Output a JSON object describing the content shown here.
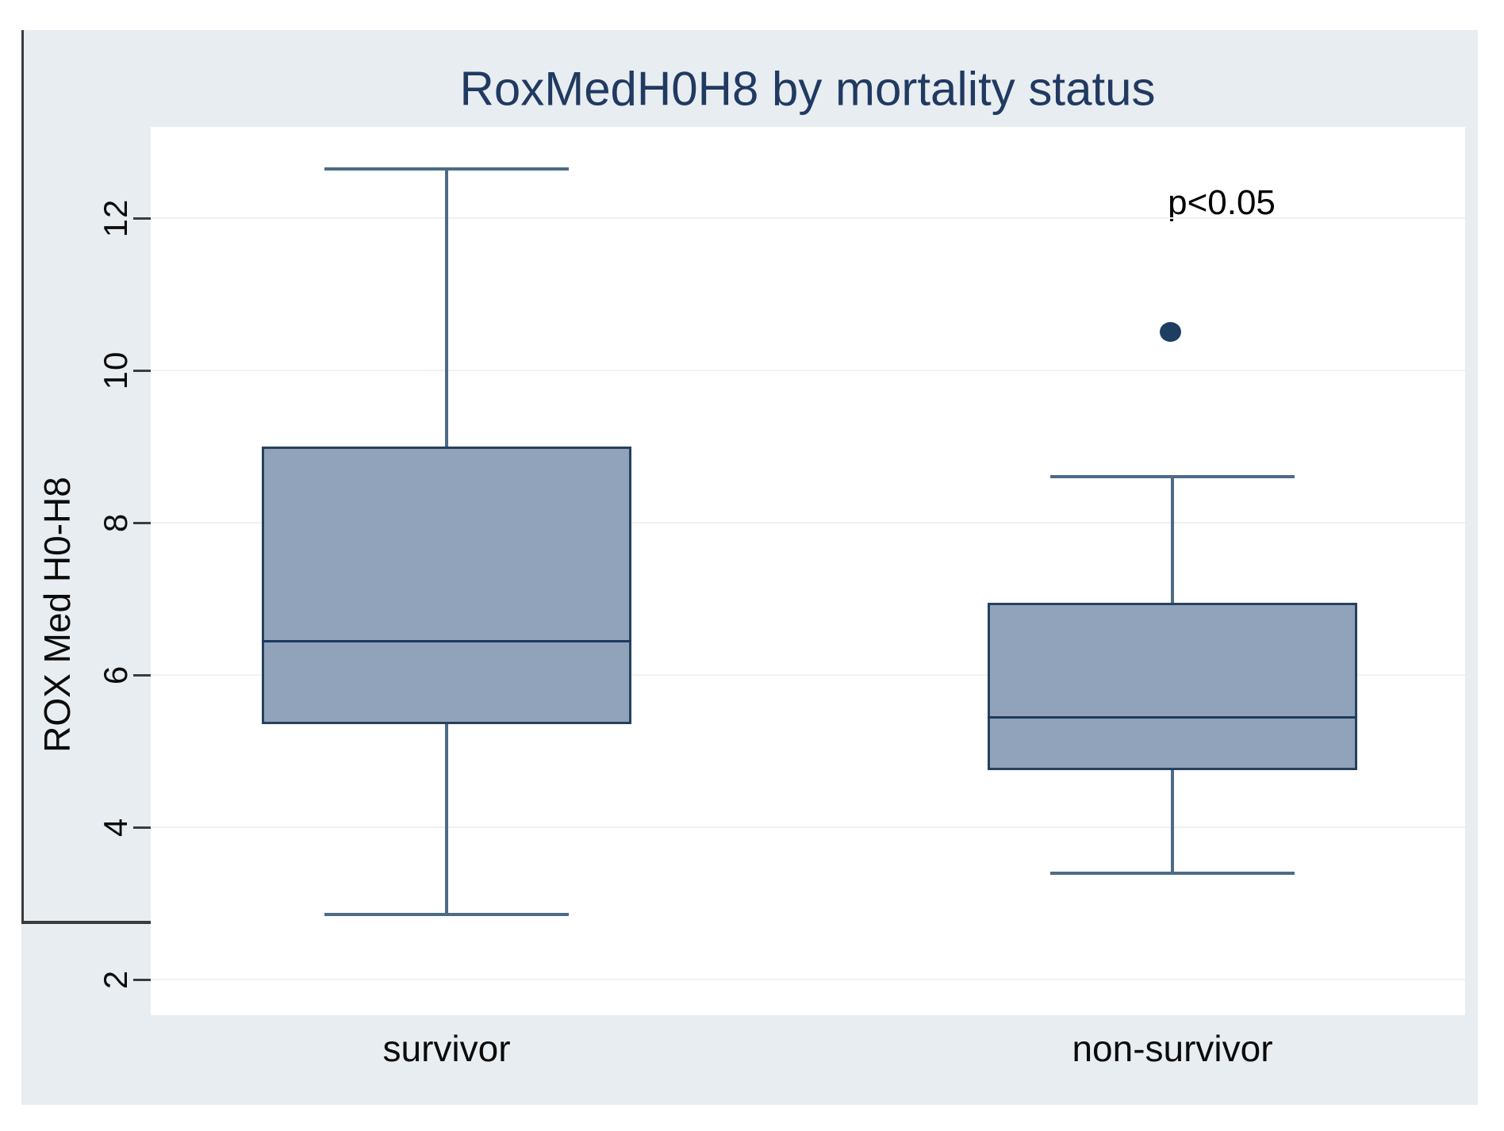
{
  "title": "RoxMedH0H8 by mortality status",
  "annotation": "p<0.05",
  "chart_data": {
    "type": "box",
    "title": "RoxMedH0H8 by mortality status",
    "ylabel": "ROX Med H0-H8",
    "xlabel": "",
    "categories": [
      "survivor",
      "non-survivor"
    ],
    "yticks": [
      2,
      4,
      6,
      8,
      10,
      12
    ],
    "ylim": [
      1.55,
      13.25
    ],
    "grid": true,
    "legend": "none",
    "series": [
      {
        "name": "survivor",
        "min": 2.85,
        "q1": 5.35,
        "median": 6.45,
        "q3": 9.0,
        "max": 12.65,
        "outliers": []
      },
      {
        "name": "non-survivor",
        "min": 3.4,
        "q1": 4.75,
        "median": 5.45,
        "q3": 6.95,
        "max": 8.6,
        "outliers": [
          10.5
        ]
      }
    ],
    "annotation": {
      "text": "p<0.05",
      "near_category": "non-survivor",
      "y_value": 12.2
    },
    "colors": {
      "canvas_bg": "#e8edf1",
      "plot_bg": "#ffffff",
      "grid": "#eef1f3",
      "axis": "#3b3b3b",
      "box_fill": "#91a3ba",
      "box_border": "#26415e",
      "median": "#1c3a5e",
      "whisker": "#4d6b87",
      "outlier": "#1d3e63",
      "title": "#203a61",
      "text": "#0b0b0b"
    }
  }
}
